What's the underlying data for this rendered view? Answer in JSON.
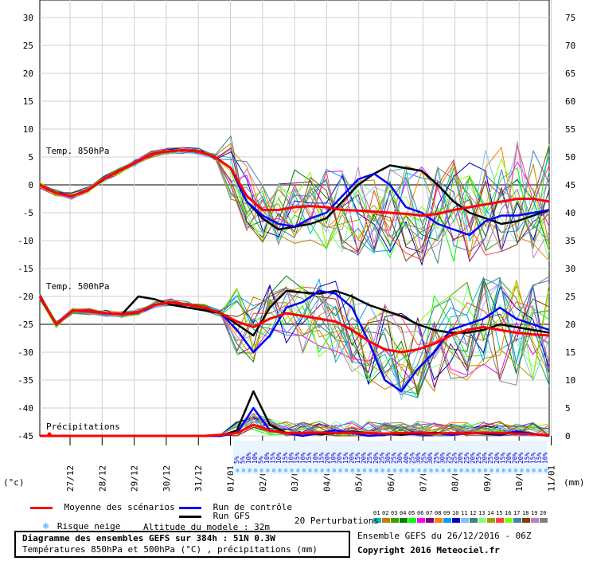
{
  "chart_data": {
    "type": "line",
    "y_left": {
      "ticks": [
        30,
        25,
        20,
        15,
        10,
        5,
        0,
        -5,
        -10,
        -15,
        -20,
        -25,
        -30,
        -35,
        -40,
        -45
      ],
      "unit": "(°c)"
    },
    "y_right": {
      "ticks": [
        75,
        70,
        65,
        60,
        55,
        50,
        45,
        40,
        35,
        30,
        25,
        20,
        15,
        10,
        5,
        0
      ],
      "unit": "(mm)"
    },
    "x_ticks": [
      "27/12",
      "28/12",
      "29/12",
      "30/12",
      "31/12",
      "01/01",
      "02/01",
      "03/01",
      "04/01",
      "05/01",
      "06/01",
      "07/01",
      "08/01",
      "09/01",
      "10/01",
      "11/01"
    ],
    "panel_labels": {
      "t850": "Temp. 850hPa",
      "t500": "Temp. 500hPa",
      "precip": "Précipitations"
    },
    "snow_risk": [
      "5%",
      "5%",
      "10%",
      "10%",
      "5%",
      "10%",
      "15%",
      "10%",
      "15%",
      "10%",
      "15%",
      "10%",
      "15%",
      "10%",
      "15%",
      "20%",
      "10%",
      "20%",
      "15%",
      "20%",
      "15%",
      "20%",
      "25%",
      "20%",
      "25%",
      "30%",
      "25%",
      "30%",
      "40%",
      "25%",
      "30%",
      "25%",
      "30%",
      "25%",
      "30%",
      "25%",
      "25%",
      "20%",
      "25%",
      "20%",
      "25%",
      "20%",
      "25%",
      "20%",
      "15%",
      "20%",
      "20%",
      "20%",
      "15%",
      "15%",
      "15%",
      "10%"
    ],
    "series": [
      {
        "name": "Moyenne des scénarios",
        "color": "#ff0000",
        "t850": [
          0,
          -1.5,
          -2,
          -1,
          1,
          2.5,
          4,
          5.5,
          6,
          6.2,
          6,
          5,
          3,
          -2,
          -4.5,
          -4.5,
          -4,
          -3.8,
          -4,
          -4.5,
          -4.6,
          -4.8,
          -5,
          -5.2,
          -5.5,
          -5.2,
          -4.5,
          -4,
          -3.5,
          -3,
          -2.5,
          -2.5,
          -3
        ],
        "t500": [
          -20,
          -25,
          -22.5,
          -22.7,
          -23,
          -23.2,
          -22.8,
          -21.5,
          -21,
          -21.5,
          -22,
          -23,
          -24.5,
          -25.5,
          -24,
          -23,
          -23.5,
          -24,
          -24.5,
          -26,
          -28,
          -29.5,
          -30,
          -29.5,
          -28.5,
          -27,
          -26,
          -25.5,
          -26,
          -26.5,
          -26.8,
          -27
        ],
        "precip": [
          0,
          0,
          0,
          0,
          0,
          0,
          0,
          0,
          0,
          0,
          0,
          0.2,
          0.5,
          2,
          1,
          0.5,
          0.5,
          0.6,
          0.5,
          0.6,
          0.5,
          0.4,
          0.5,
          0.6,
          0.4,
          0.5,
          0.4,
          0.6,
          0.5,
          0.4,
          0.3,
          0.1
        ]
      },
      {
        "name": "Run de contrôle",
        "color": "#0000ff",
        "t850": [
          0,
          -1.5,
          -2,
          -1,
          1,
          2.5,
          4,
          5.5,
          6,
          6.2,
          6,
          5,
          3,
          -3,
          -5.5,
          -7,
          -7.5,
          -6,
          -5,
          -2,
          1,
          2,
          0,
          -4,
          -5,
          -7,
          -8,
          -9,
          -6.5,
          -5.5,
          -5.5,
          -5,
          -4.5
        ],
        "t500": [
          -20,
          -25,
          -22.5,
          -22.7,
          -23,
          -23.2,
          -22.8,
          -21.5,
          -21,
          -21.5,
          -22,
          -23,
          -26,
          -30,
          -27,
          -22,
          -21,
          -19,
          -19.5,
          -22,
          -28,
          -35,
          -37,
          -33,
          -30,
          -26,
          -25,
          -24,
          -22,
          -24,
          -25,
          -26
        ],
        "precip": [
          0,
          0,
          0,
          0,
          0,
          0,
          0,
          0,
          0,
          0,
          0,
          0,
          0.5,
          5,
          1,
          0.5,
          0,
          0.5,
          1,
          0.5,
          0,
          0.2,
          0.5,
          0.3,
          0.5,
          0.2,
          0.4,
          0.5,
          0.3,
          0.8,
          0.4,
          0
        ]
      },
      {
        "name": "Run GFS",
        "color": "#000000",
        "t850": [
          0,
          -1.5,
          -2,
          -1,
          1,
          2.5,
          4,
          5.5,
          6,
          6.2,
          6,
          5,
          3,
          -3,
          -6,
          -8,
          -7.5,
          -7,
          -6,
          -3,
          0,
          2,
          3.5,
          3,
          2.5,
          0,
          -3,
          -5,
          -6,
          -7,
          -6.5,
          -5.5,
          -4.5
        ],
        "t500": [
          -20,
          -25,
          -22.5,
          -22.7,
          -23,
          -23.2,
          -20,
          -20.5,
          -21.5,
          -22,
          -22.5,
          -23,
          -25,
          -27,
          -22,
          -19,
          -19.3,
          -19.5,
          -19,
          -20,
          -21.5,
          -22.5,
          -23.5,
          -25,
          -26,
          -26.5,
          -26.5,
          -26,
          -25,
          -25.5,
          -26,
          -26.5
        ],
        "precip": [
          0,
          0,
          0,
          0,
          0,
          0,
          0,
          0,
          0,
          0,
          0,
          0,
          1,
          8,
          2,
          0.5,
          0.5,
          0.3,
          0.5,
          0.8,
          0.5,
          0.3,
          0.2,
          0.4,
          0.6,
          0.3,
          0.5,
          0.4,
          0.2,
          0.6,
          0.3,
          0
        ]
      }
    ]
  },
  "legend": {
    "mean_label": "Moyenne des scénarios",
    "control_label": "Run de contrôle",
    "gfs_label": "Run GFS",
    "perturbations_label": "20 Perturbations",
    "perturbation_codes": [
      "01",
      "02",
      "03",
      "04",
      "05",
      "06",
      "07",
      "08",
      "09",
      "10",
      "11",
      "12",
      "13",
      "14",
      "15",
      "16",
      "17",
      "18",
      "19",
      "20"
    ],
    "perturbation_colors": [
      "#00c0c0",
      "#c08000",
      "#40a000",
      "#008000",
      "#00ff00",
      "#ff00ff",
      "#800080",
      "#ff8000",
      "#00a0ff",
      "#0000c0",
      "#80c0ff",
      "#408080",
      "#80ff80",
      "#a0a000",
      "#ff4040",
      "#80ff00",
      "#4080c0",
      "#804000",
      "#c080c0",
      "#808080"
    ],
    "snow_label": "Risque neige",
    "altitude_label": "Altitude du modele : 32m"
  },
  "info": {
    "title": "Diagramme des ensembles GEFS sur 384h : 51N 0.3W",
    "subtitle": "Températures 850hPa et 500hPa (°C) , précipitations (mm)",
    "run": "Ensemble GEFS du 26/12/2016 - 06Z",
    "copyright": "Copyright 2016 Meteociel.fr"
  }
}
